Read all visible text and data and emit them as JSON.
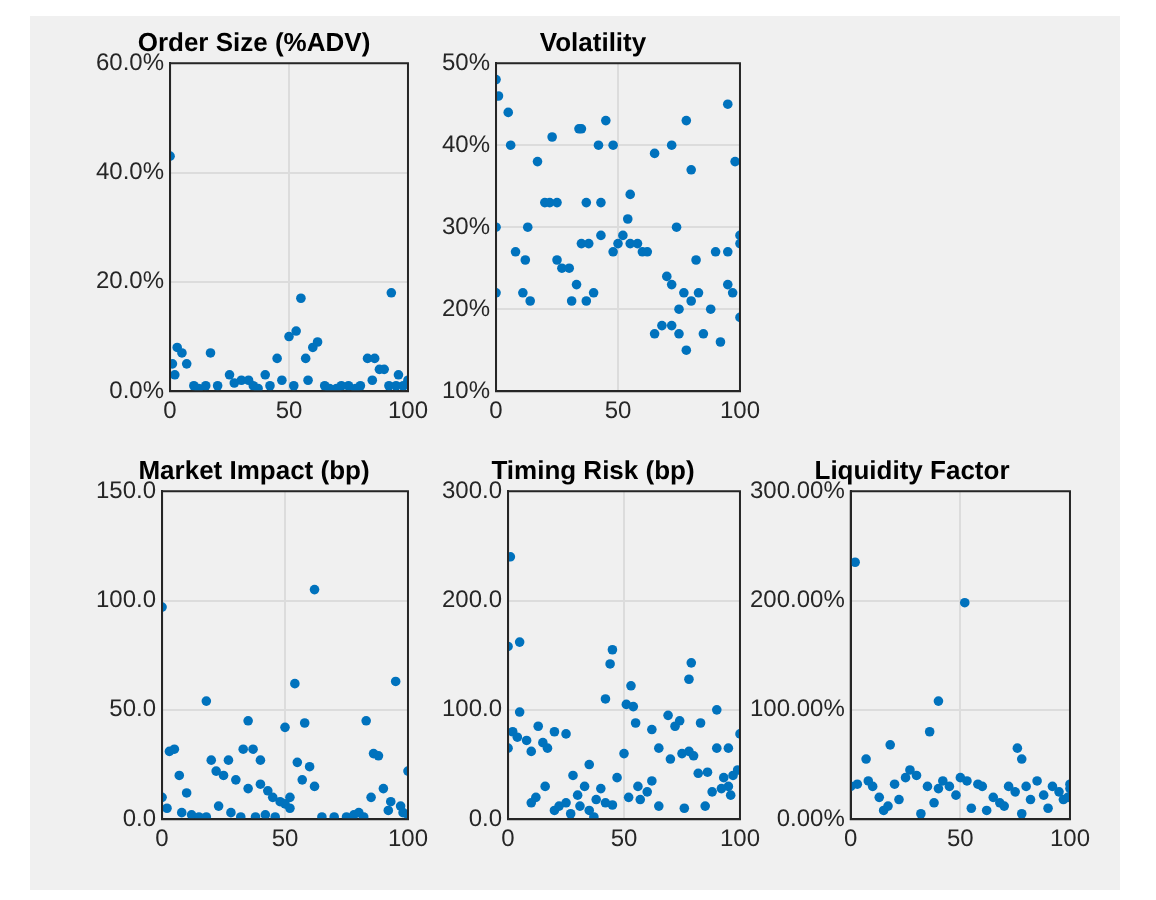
{
  "chart_data": [
    {
      "type": "scatter",
      "title": "Order Size (%ADV)",
      "color": "#0072bd",
      "marker": "circle",
      "grid": true,
      "xlim": [
        0,
        100
      ],
      "xticks": [
        0,
        50,
        100
      ],
      "ylim": [
        0,
        60
      ],
      "yticks": [
        {
          "value": 0,
          "label": "0.0%"
        },
        {
          "value": 20,
          "label": "20.0%"
        },
        {
          "value": 40,
          "label": "40.0%"
        },
        {
          "value": 60,
          "label": "60.0%"
        }
      ],
      "x": [
        0,
        1,
        2,
        3,
        5,
        7,
        17,
        10,
        20,
        25,
        30,
        35,
        40,
        45,
        50,
        53,
        55,
        57,
        60,
        62,
        65,
        70,
        75,
        80,
        83,
        86,
        88,
        90,
        93,
        96,
        100,
        98,
        12,
        15,
        27,
        33,
        37,
        42,
        47,
        52,
        58,
        67,
        72,
        78,
        85,
        92,
        95
      ],
      "values": [
        43,
        5,
        3,
        8,
        7,
        5,
        7,
        1,
        1,
        3,
        2,
        1,
        3,
        6,
        10,
        11,
        17,
        6,
        8,
        9,
        1,
        0.5,
        1,
        1,
        6,
        6,
        4,
        4,
        18,
        3,
        2,
        1,
        0.5,
        1,
        1.5,
        2,
        0.5,
        1,
        2,
        1,
        2,
        0.5,
        1,
        0.5,
        2,
        1,
        1
      ]
    },
    {
      "type": "scatter",
      "title": "Volatility",
      "color": "#0072bd",
      "marker": "circle",
      "grid": true,
      "xlim": [
        0,
        100
      ],
      "xticks": [
        0,
        50,
        100
      ],
      "ylim": [
        10,
        50
      ],
      "yticks": [
        {
          "value": 10,
          "label": "10%"
        },
        {
          "value": 20,
          "label": "20%"
        },
        {
          "value": 30,
          "label": "30%"
        },
        {
          "value": 40,
          "label": "40%"
        },
        {
          "value": 50,
          "label": "50%"
        }
      ],
      "x": [
        0,
        1,
        5,
        6,
        17,
        23,
        35,
        34,
        45,
        48,
        42,
        20,
        22,
        25,
        37,
        43,
        55,
        54,
        65,
        72,
        78,
        80,
        95,
        98,
        0,
        13,
        8,
        12,
        25,
        27,
        30,
        33,
        35,
        38,
        43,
        48,
        50,
        52,
        55,
        58,
        60,
        62,
        74,
        82,
        90,
        95,
        100,
        100,
        0,
        11,
        14,
        31,
        37,
        40,
        70,
        72,
        75,
        77,
        65,
        68,
        72,
        75,
        78,
        80,
        83,
        85,
        88,
        92,
        95,
        97,
        100
      ],
      "values": [
        48,
        46,
        44,
        40,
        38,
        41,
        42,
        42,
        43,
        40,
        40,
        33,
        33,
        33,
        33,
        33,
        34,
        31,
        39,
        40,
        43,
        37,
        45,
        38,
        30,
        30,
        27,
        26,
        26,
        25,
        25,
        23,
        28,
        28,
        29,
        27,
        28,
        29,
        28,
        28,
        27,
        27,
        30,
        26,
        27,
        27,
        28,
        29,
        22,
        22,
        21,
        21,
        21,
        22,
        24,
        23,
        20,
        22,
        17,
        18,
        18,
        17,
        15,
        21,
        22,
        17,
        20,
        16,
        23,
        22,
        19
      ]
    },
    {
      "type": "scatter",
      "title": "Market Impact (bp)",
      "color": "#0072bd",
      "marker": "circle",
      "grid": true,
      "xlim": [
        0,
        100
      ],
      "xticks": [
        0,
        50,
        100
      ],
      "ylim": [
        0,
        150
      ],
      "yticks": [
        {
          "value": 0,
          "label": "0.0"
        },
        {
          "value": 50,
          "label": "50.0"
        },
        {
          "value": 100,
          "label": "100.0"
        },
        {
          "value": 150,
          "label": "150.0"
        }
      ],
      "x": [
        0,
        62,
        54,
        95,
        18,
        35,
        50,
        58,
        83,
        3,
        5,
        7,
        20,
        22,
        25,
        27,
        33,
        37,
        30,
        35,
        40,
        40,
        43,
        45,
        48,
        50,
        52,
        55,
        57,
        60,
        62,
        86,
        88,
        90,
        85,
        93,
        97,
        100,
        0,
        2,
        8,
        10,
        12,
        15,
        18,
        23,
        28,
        32,
        38,
        42,
        46,
        52,
        65,
        70,
        75,
        78,
        80,
        82,
        92,
        98,
        100
      ],
      "values": [
        97,
        105,
        62,
        63,
        54,
        45,
        42,
        44,
        45,
        31,
        32,
        20,
        27,
        22,
        20,
        27,
        32,
        32,
        18,
        14,
        27,
        16,
        13,
        10,
        8,
        7,
        5,
        26,
        18,
        24,
        15,
        30,
        29,
        14,
        10,
        8,
        6,
        22,
        10,
        5,
        3,
        12,
        2,
        1,
        1,
        6,
        3,
        1,
        1,
        2,
        1,
        10,
        1,
        1,
        1,
        2,
        3,
        1,
        4,
        3,
        2
      ]
    },
    {
      "type": "scatter",
      "title": "Timing Risk (bp)",
      "color": "#0072bd",
      "marker": "circle",
      "grid": true,
      "xlim": [
        0,
        100
      ],
      "xticks": [
        0,
        50,
        100
      ],
      "ylim": [
        0,
        300
      ],
      "yticks": [
        {
          "value": 0,
          "label": "0.0"
        },
        {
          "value": 100,
          "label": "100.0"
        },
        {
          "value": 200,
          "label": "200.0"
        },
        {
          "value": 300,
          "label": "300.0"
        }
      ],
      "x": [
        1,
        0,
        5,
        45,
        44,
        53,
        79,
        78,
        42,
        51,
        54,
        55,
        62,
        69,
        72,
        74,
        78,
        83,
        90,
        0,
        2,
        4,
        5,
        8,
        10,
        13,
        15,
        17,
        20,
        25,
        100,
        95,
        65,
        70,
        75,
        82,
        86,
        93,
        95,
        97,
        99,
        50,
        47,
        56,
        60,
        62,
        65,
        57,
        52,
        35,
        28,
        30,
        33,
        38,
        40,
        45,
        20,
        22,
        25,
        27,
        31,
        35,
        37,
        42,
        10,
        12,
        16,
        76,
        85,
        88,
        92,
        96,
        80,
        90
      ],
      "values": [
        240,
        158,
        162,
        155,
        142,
        122,
        143,
        128,
        110,
        105,
        103,
        88,
        82,
        95,
        85,
        90,
        62,
        88,
        100,
        65,
        80,
        75,
        98,
        72,
        62,
        85,
        70,
        65,
        80,
        78,
        78,
        65,
        65,
        55,
        60,
        42,
        43,
        38,
        30,
        40,
        45,
        60,
        38,
        30,
        25,
        35,
        12,
        18,
        20,
        50,
        40,
        22,
        30,
        18,
        28,
        13,
        8,
        12,
        15,
        5,
        12,
        8,
        2,
        15,
        15,
        20,
        30,
        10,
        12,
        25,
        28,
        22,
        58,
        65
      ]
    },
    {
      "type": "scatter",
      "title": "Liquidity Factor",
      "color": "#0072bd",
      "marker": "circle",
      "grid": true,
      "xlim": [
        0,
        100
      ],
      "xticks": [
        0,
        50,
        100
      ],
      "ylim": [
        0,
        300
      ],
      "yticks": [
        {
          "value": 0,
          "label": "0.00%"
        },
        {
          "value": 100,
          "label": "100.00%"
        },
        {
          "value": 200,
          "label": "200.00%"
        },
        {
          "value": 300,
          "label": "300.00%"
        }
      ],
      "x": [
        2,
        52,
        40,
        36,
        18,
        76,
        78,
        7,
        0,
        3,
        8,
        10,
        13,
        15,
        17,
        20,
        22,
        25,
        27,
        30,
        32,
        35,
        38,
        40,
        42,
        45,
        48,
        50,
        53,
        55,
        58,
        60,
        62,
        65,
        68,
        70,
        72,
        75,
        78,
        80,
        82,
        85,
        88,
        90,
        92,
        95,
        97,
        100,
        100,
        99
      ],
      "values": [
        235,
        198,
        108,
        80,
        68,
        65,
        55,
        55,
        30,
        32,
        35,
        30,
        20,
        8,
        12,
        32,
        18,
        38,
        45,
        40,
        5,
        30,
        15,
        28,
        35,
        30,
        22,
        38,
        35,
        10,
        32,
        30,
        8,
        20,
        15,
        12,
        30,
        25,
        5,
        30,
        18,
        35,
        22,
        10,
        30,
        25,
        18,
        28,
        32,
        20
      ]
    }
  ]
}
